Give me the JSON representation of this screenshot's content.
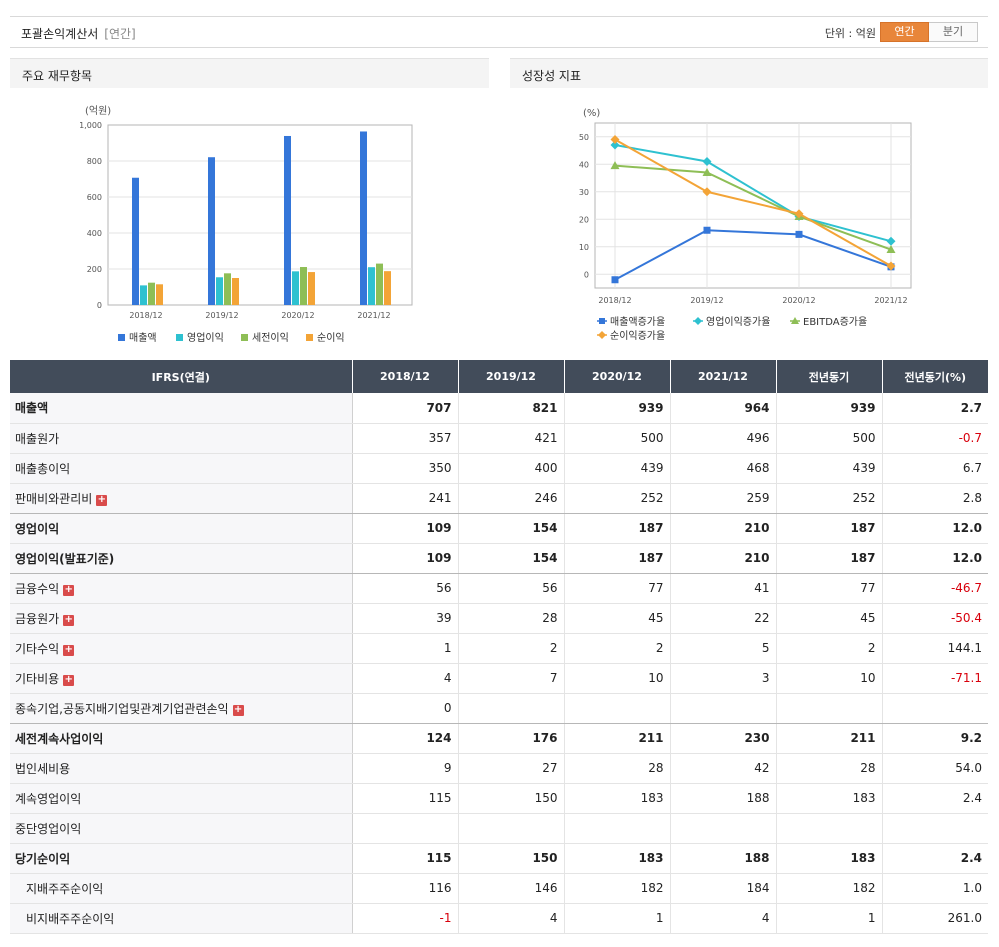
{
  "header": {
    "title": "포괄손익계산서",
    "period": "[연간]",
    "unit": "단위 : 억원",
    "toggle_annual": "연간",
    "toggle_quarter": "분기"
  },
  "left_panel": {
    "title": "주요 재무항목",
    "chart_data": {
      "type": "bar",
      "ylabel": "(억원)",
      "categories": [
        "2018/12",
        "2019/12",
        "2020/12",
        "2021/12"
      ],
      "ylim": [
        0,
        1000
      ],
      "yticks": [
        "0",
        "200",
        "400",
        "600",
        "800",
        "1,000"
      ],
      "series": [
        {
          "name": "매출액",
          "color": "#3476d9",
          "values": [
            707,
            821,
            939,
            964
          ]
        },
        {
          "name": "영업이익",
          "color": "#2ec1d0",
          "values": [
            109,
            154,
            187,
            210
          ]
        },
        {
          "name": "세전이익",
          "color": "#8ebe56",
          "values": [
            124,
            176,
            211,
            230
          ]
        },
        {
          "name": "순이익",
          "color": "#f3a437",
          "values": [
            115,
            150,
            183,
            188
          ]
        }
      ],
      "grid": true,
      "legend": "bottom"
    }
  },
  "right_panel": {
    "title": "성장성 지표",
    "chart_data": {
      "type": "line",
      "ylabel": "(%)",
      "categories": [
        "2018/12",
        "2019/12",
        "2020/12",
        "2021/12"
      ],
      "ylim": [
        -5,
        55
      ],
      "yticks": [
        "0",
        "10",
        "20",
        "30",
        "40",
        "50"
      ],
      "series": [
        {
          "name": "매출액증가율",
          "color": "#3476d9",
          "marker": "square",
          "values": [
            -2,
            16,
            14.5,
            2.7
          ]
        },
        {
          "name": "영업이익증가율",
          "color": "#2ec1d0",
          "marker": "diamond",
          "values": [
            47,
            41,
            21,
            12
          ]
        },
        {
          "name": "EBITDA증가율",
          "color": "#8ebe56",
          "marker": "triangle",
          "values": [
            39.5,
            37,
            21,
            9
          ]
        },
        {
          "name": "순이익증가율",
          "color": "#f3a437",
          "marker": "diamond",
          "values": [
            49,
            30,
            22,
            3
          ]
        }
      ],
      "grid": true,
      "legend": "bottom"
    }
  },
  "table": {
    "headers": [
      "IFRS(연결)",
      "2018/12",
      "2019/12",
      "2020/12",
      "2021/12",
      "전년동기",
      "전년동기(%)"
    ],
    "rows": [
      {
        "label": "매출액",
        "values": [
          "707",
          "821",
          "939",
          "964",
          "939",
          "2.7"
        ],
        "bold": true
      },
      {
        "label": "매출원가",
        "values": [
          "357",
          "421",
          "500",
          "496",
          "500",
          "-0.7"
        ]
      },
      {
        "label": "매출총이익",
        "values": [
          "350",
          "400",
          "439",
          "468",
          "439",
          "6.7"
        ]
      },
      {
        "label": "판매비와관리비",
        "values": [
          "241",
          "246",
          "252",
          "259",
          "252",
          "2.8"
        ],
        "expand": true,
        "sep": true
      },
      {
        "label": "영업이익",
        "values": [
          "109",
          "154",
          "187",
          "210",
          "187",
          "12.0"
        ],
        "bold": true
      },
      {
        "label": "영업이익(발표기준)",
        "values": [
          "109",
          "154",
          "187",
          "210",
          "187",
          "12.0"
        ],
        "bold": true,
        "sep": true
      },
      {
        "label": "금융수익",
        "values": [
          "56",
          "56",
          "77",
          "41",
          "77",
          "-46.7"
        ],
        "expand": true
      },
      {
        "label": "금융원가",
        "values": [
          "39",
          "28",
          "45",
          "22",
          "45",
          "-50.4"
        ],
        "expand": true
      },
      {
        "label": "기타수익",
        "values": [
          "1",
          "2",
          "2",
          "5",
          "2",
          "144.1"
        ],
        "expand": true
      },
      {
        "label": "기타비용",
        "values": [
          "4",
          "7",
          "10",
          "3",
          "10",
          "-71.1"
        ],
        "expand": true
      },
      {
        "label": "종속기업,공동지배기업및관계기업관련손익",
        "values": [
          "0",
          "",
          "",
          "",
          "",
          ""
        ],
        "expand": true,
        "sep": true
      },
      {
        "label": "세전계속사업이익",
        "values": [
          "124",
          "176",
          "211",
          "230",
          "211",
          "9.2"
        ],
        "bold": true
      },
      {
        "label": "법인세비용",
        "values": [
          "9",
          "27",
          "28",
          "42",
          "28",
          "54.0"
        ]
      },
      {
        "label": "계속영업이익",
        "values": [
          "115",
          "150",
          "183",
          "188",
          "183",
          "2.4"
        ]
      },
      {
        "label": "중단영업이익",
        "values": [
          "",
          "",
          "",
          "",
          "",
          ""
        ]
      },
      {
        "label": "당기순이익",
        "values": [
          "115",
          "150",
          "183",
          "188",
          "183",
          "2.4"
        ],
        "bold": true
      },
      {
        "label": "지배주주순이익",
        "values": [
          "116",
          "146",
          "182",
          "184",
          "182",
          "1.0"
        ],
        "indent": true
      },
      {
        "label": "비지배주주순이익",
        "values": [
          "-1",
          "4",
          "1",
          "4",
          "1",
          "261.0"
        ],
        "indent": true
      }
    ]
  }
}
